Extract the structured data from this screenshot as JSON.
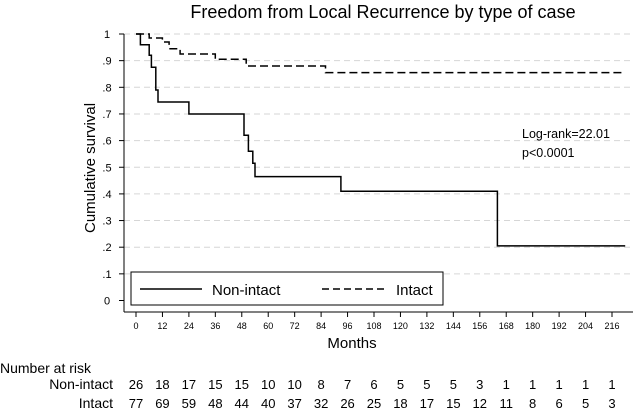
{
  "chart_data": {
    "type": "line",
    "title": "Freedom from Local Recurrence by type of case",
    "xlabel": "Months",
    "ylabel": "Cumulative survival",
    "xlim": [
      0,
      228
    ],
    "ylim": [
      0,
      1
    ],
    "xticks": [
      "0",
      "12",
      "24",
      "36",
      "48",
      "60",
      "72",
      "84",
      "96",
      "108",
      "120",
      "132",
      "144",
      "156",
      "168",
      "180",
      "192",
      "204",
      "216"
    ],
    "yticks": [
      "0",
      ".1",
      ".2",
      ".3",
      ".4",
      ".5",
      ".6",
      ".7",
      ".8",
      ".9",
      "1"
    ],
    "grid": "horizontal dashed",
    "legend_position": "bottom",
    "series": [
      {
        "name": "Non-intact",
        "style": "solid",
        "points": [
          [
            0,
            1.0
          ],
          [
            2,
            1.0
          ],
          [
            2,
            0.96
          ],
          [
            6,
            0.96
          ],
          [
            6,
            0.92
          ],
          [
            7,
            0.92
          ],
          [
            7,
            0.875
          ],
          [
            9,
            0.875
          ],
          [
            9,
            0.79
          ],
          [
            10,
            0.79
          ],
          [
            10,
            0.745
          ],
          [
            24,
            0.745
          ],
          [
            24,
            0.7
          ],
          [
            49,
            0.7
          ],
          [
            49,
            0.62
          ],
          [
            51,
            0.62
          ],
          [
            51,
            0.56
          ],
          [
            53,
            0.56
          ],
          [
            53,
            0.515
          ],
          [
            54,
            0.515
          ],
          [
            54,
            0.465
          ],
          [
            93,
            0.465
          ],
          [
            93,
            0.41
          ],
          [
            164,
            0.41
          ],
          [
            164,
            0.205
          ],
          [
            222,
            0.205
          ]
        ]
      },
      {
        "name": "Intact",
        "style": "dashed",
        "points": [
          [
            0,
            1.0
          ],
          [
            6,
            1.0
          ],
          [
            6,
            0.985
          ],
          [
            12,
            0.985
          ],
          [
            12,
            0.97
          ],
          [
            15,
            0.97
          ],
          [
            15,
            0.945
          ],
          [
            20,
            0.945
          ],
          [
            20,
            0.925
          ],
          [
            36,
            0.925
          ],
          [
            36,
            0.905
          ],
          [
            50,
            0.905
          ],
          [
            50,
            0.88
          ],
          [
            86,
            0.88
          ],
          [
            86,
            0.855
          ],
          [
            222,
            0.855
          ]
        ]
      }
    ],
    "annotations": [
      "Log-rank=22.01",
      "p<0.0001"
    ],
    "risk_table": {
      "header": "Number at risk",
      "rows": [
        {
          "label": "Non-intact",
          "values": [
            "26",
            "18",
            "17",
            "15",
            "15",
            "10",
            "10",
            "8",
            "7",
            "6",
            "5",
            "5",
            "5",
            "3",
            "1",
            "1",
            "1",
            "1",
            "1"
          ]
        },
        {
          "label": "Intact",
          "values": [
            "77",
            "69",
            "59",
            "48",
            "44",
            "40",
            "37",
            "32",
            "26",
            "25",
            "18",
            "17",
            "15",
            "12",
            "11",
            "8",
            "6",
            "5",
            "3"
          ]
        }
      ]
    }
  }
}
